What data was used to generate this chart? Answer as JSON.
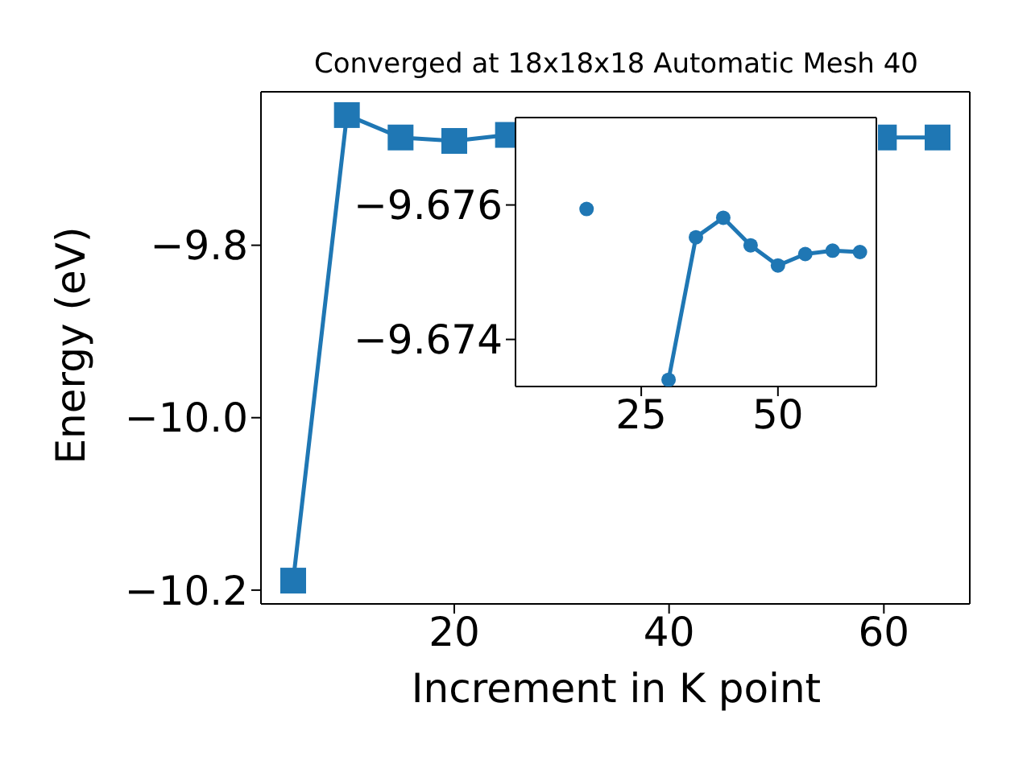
{
  "chart_data": [
    {
      "type": "line",
      "title": "Converged at 18x18x18 Automatic Mesh 40",
      "xlabel": "Increment in K point",
      "ylabel": "Energy (eV)",
      "x": [
        5,
        10,
        15,
        20,
        25,
        30,
        35,
        40,
        45,
        50,
        55,
        60,
        65
      ],
      "series": [
        {
          "color": "#1f77b4",
          "marker": "square",
          "values": [
            -10.189,
            -9.649,
            -9.675,
            -9.679,
            -9.672,
            null,
            null,
            null,
            null,
            null,
            null,
            -9.675,
            -9.675
          ]
        }
      ],
      "xlim": [
        2,
        68
      ],
      "xticks": [
        20,
        40,
        60
      ],
      "ylim": [
        -10.216,
        -9.622
      ],
      "yticks": [
        {
          "value": -10.2,
          "label": "−10.2"
        },
        {
          "value": -10.0,
          "label": "−10.0"
        },
        {
          "value": -9.8,
          "label": "−9.8"
        }
      ],
      "grid": false,
      "line_style": "solid"
    },
    {
      "type": "line",
      "x": [
        15,
        20,
        25,
        30,
        35,
        40,
        45,
        50,
        55,
        60,
        65
      ],
      "series": [
        {
          "color": "#1f77b4",
          "marker": "circle",
          "values": [
            -9.67594,
            null,
            null,
            -9.6734,
            -9.67552,
            -9.67581,
            -9.6754,
            -9.6751,
            -9.67527,
            -9.67532,
            -9.6753
          ]
        }
      ],
      "xlim": [
        2,
        68
      ],
      "xticks": [
        25,
        50
      ],
      "ylim": [
        -9.6733,
        -9.6773
      ],
      "yticks": [
        {
          "value": -9.676,
          "label": "−9.676"
        },
        {
          "value": -9.674,
          "label": "−9.674"
        }
      ],
      "grid": false,
      "line_style": "solid"
    }
  ]
}
